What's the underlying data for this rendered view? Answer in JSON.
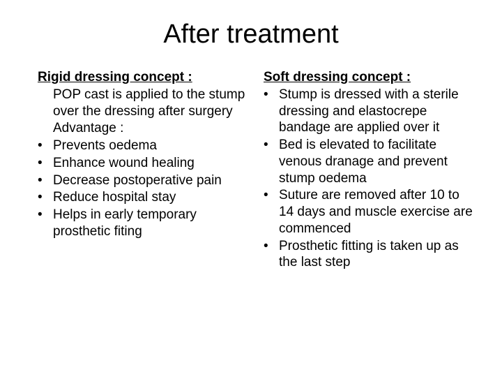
{
  "title": "After treatment",
  "left": {
    "heading": "Rigid dressing concept :",
    "intro": "POP cast is applied to the stump over the dressing after surgery",
    "advantage_label": "Advantage :",
    "bullets": [
      "Prevents oedema",
      "Enhance wound healing",
      "Decrease postoperative pain",
      "Reduce hospital stay",
      "Helps in early temporary prosthetic fiting"
    ]
  },
  "right": {
    "heading": "Soft dressing concept :",
    "bullets": [
      "Stump is dressed with a sterile dressing and elastocrepe bandage are applied over it",
      "Bed is elevated to facilitate venous dranage and prevent stump oedema",
      "Suture are removed after 10 to 14 days and muscle exercise are commenced",
      "Prosthetic fitting is taken up as the last step"
    ]
  },
  "colors": {
    "background": "#ffffff",
    "text": "#000000"
  },
  "fonts": {
    "title_size_pt": 38,
    "body_size_pt": 19,
    "family": "Arial"
  }
}
